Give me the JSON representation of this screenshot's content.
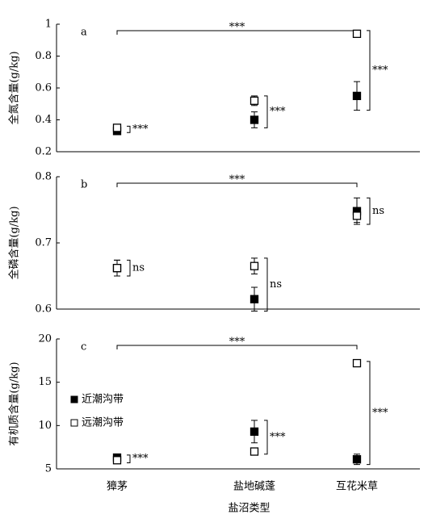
{
  "chart_data": [
    {
      "type": "scatter",
      "panel_label": "a",
      "y_label": "全氮含量(g/kg)",
      "ylim": [
        0.2,
        1
      ],
      "yticks": [
        0.2,
        0.4,
        0.6,
        0.8,
        1
      ],
      "series": [
        {
          "color": "#000000",
          "values": [
            0.33,
            0.4,
            0.55
          ],
          "errors": [
            0.01,
            0.05,
            0.09
          ]
        },
        {
          "color": "#ffffff",
          "values": [
            0.35,
            0.52,
            0.94
          ],
          "errors": [
            0.01,
            0.03,
            0.02
          ]
        }
      ],
      "pair_labels": [
        "***",
        "***",
        "***"
      ],
      "overall_label": "***"
    },
    {
      "type": "scatter",
      "panel_label": "b",
      "y_label": "全磷含量(g/kg)",
      "ylim": [
        0.6,
        0.8
      ],
      "yticks": [
        0.6,
        0.7,
        0.8
      ],
      "series": [
        {
          "color": "#000000",
          "values": [
            0.662,
            0.615,
            0.748
          ],
          "errors": [
            0.012,
            0.018,
            0.02
          ]
        },
        {
          "color": "#ffffff",
          "values": [
            0.662,
            0.665,
            0.741
          ],
          "errors": [
            0.012,
            0.012,
            0.01
          ]
        }
      ],
      "pair_labels": [
        "ns",
        "ns",
        "ns"
      ],
      "overall_label": "***"
    },
    {
      "type": "scatter",
      "panel_label": "c",
      "y_label": "有机质含量(g/kg)",
      "x_label": "盐沼类型",
      "categories": [
        "獐茅",
        "盐地碱蓬",
        "互花米草"
      ],
      "ylim": [
        5,
        20
      ],
      "yticks": [
        5,
        10,
        15,
        20
      ],
      "legend": "left",
      "series": [
        {
          "name": "近潮沟带",
          "color": "#000000",
          "values": [
            6.3,
            9.3,
            6.1
          ],
          "errors": [
            0.3,
            1.3,
            0.6
          ]
        },
        {
          "name": "远潮沟带",
          "color": "#ffffff",
          "values": [
            6.0,
            7.0,
            17.2
          ],
          "errors": [
            0.3,
            0.3,
            0.2
          ]
        }
      ],
      "pair_labels": [
        "***",
        "***",
        "***"
      ],
      "overall_label": "***"
    }
  ]
}
